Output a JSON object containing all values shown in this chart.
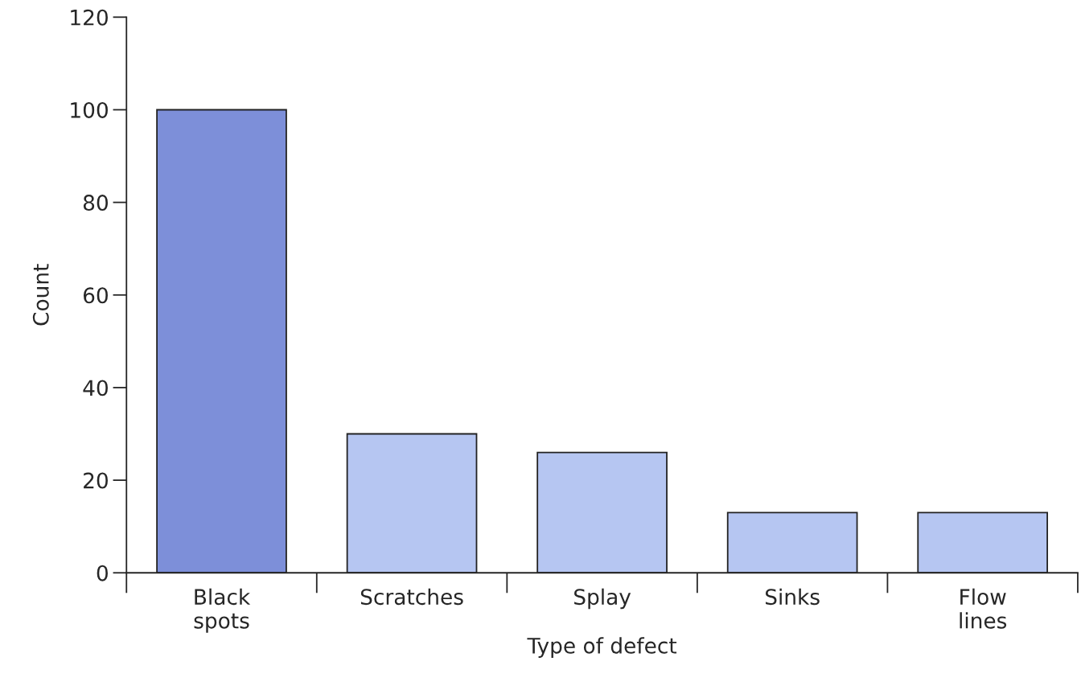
{
  "chart_data": {
    "type": "bar",
    "xlabel": "Type of defect",
    "ylabel": "Count",
    "categories": [
      "Black\nspots",
      "Scratches",
      "Splay",
      "Sinks",
      "Flow\nlines"
    ],
    "values": [
      100,
      30,
      26,
      13,
      13
    ],
    "colors": [
      "#7d8fd9",
      "#b6c6f2",
      "#b6c6f2",
      "#b6c6f2",
      "#b6c6f2"
    ],
    "ylim": [
      0,
      120
    ],
    "yticks": [
      0,
      20,
      40,
      60,
      80,
      100,
      120
    ],
    "grid": false,
    "legend": false
  }
}
